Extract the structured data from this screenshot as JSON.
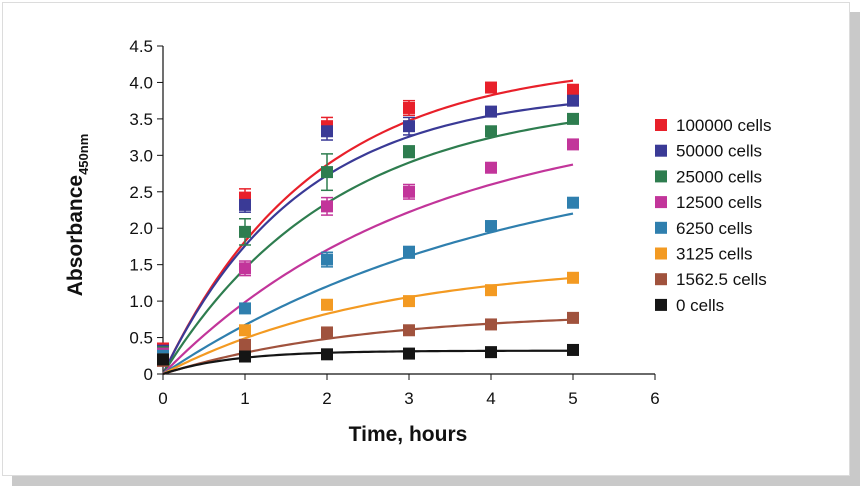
{
  "chart_data": {
    "type": "line",
    "title": "",
    "xlabel": "Time, hours",
    "ylabel_main": "Absorbance",
    "ylabel_sub": "450nm",
    "xlim": [
      0,
      6
    ],
    "ylim": [
      0,
      4.5
    ],
    "x_ticks": [
      "0",
      "1",
      "2",
      "3",
      "4",
      "5",
      "6"
    ],
    "y_ticks": [
      "0",
      "0.5",
      "1.0",
      "1.5",
      "2.0",
      "2.5",
      "3.0",
      "3.5",
      "4.0",
      "4.5"
    ],
    "x": [
      0,
      1,
      2,
      3,
      4,
      5
    ],
    "legend_position": "right",
    "grid": false,
    "series": [
      {
        "name": "100000 cells",
        "color": "#e8202a",
        "values": [
          0.35,
          2.42,
          3.4,
          3.65,
          3.93,
          3.9
        ],
        "errors": [
          0.05,
          0.12,
          0.12,
          0.1,
          0.05,
          0.05
        ],
        "fit": {
          "a": 4.3,
          "k": 0.55,
          "c": 0.0
        }
      },
      {
        "name": "50000 cells",
        "color": "#3a3a96",
        "values": [
          0.32,
          2.32,
          3.33,
          3.4,
          3.6,
          3.75
        ],
        "errors": [
          0.05,
          0.1,
          0.12,
          0.12,
          0.05,
          0.05
        ],
        "fit": {
          "a": 3.9,
          "k": 0.6,
          "c": 0.0
        }
      },
      {
        "name": "25000 cells",
        "color": "#2e7d4f",
        "values": [
          0.3,
          1.95,
          2.77,
          3.05,
          3.33,
          3.5
        ],
        "errors": [
          0.05,
          0.18,
          0.25,
          0.08,
          0.05,
          0.05
        ],
        "fit": {
          "a": 3.8,
          "k": 0.48,
          "c": 0.0
        }
      },
      {
        "name": "12500 cells",
        "color": "#c2359a",
        "values": [
          0.28,
          1.45,
          2.3,
          2.5,
          2.83,
          3.15
        ],
        "errors": [
          0.05,
          0.1,
          0.12,
          0.1,
          0.05,
          0.05
        ],
        "fit": {
          "a": 3.6,
          "k": 0.32,
          "c": 0.0
        }
      },
      {
        "name": "6250 cells",
        "color": "#2f7fae",
        "values": [
          0.25,
          0.9,
          1.57,
          1.67,
          2.03,
          2.35
        ],
        "errors": [
          0.04,
          0.05,
          0.1,
          0.08,
          0.04,
          0.04
        ],
        "fit": {
          "a": 3.15,
          "k": 0.24,
          "c": 0.0
        }
      },
      {
        "name": "3125 cells",
        "color": "#f39a22",
        "values": [
          0.2,
          0.6,
          0.95,
          1.0,
          1.15,
          1.32
        ],
        "errors": [
          0.03,
          0.03,
          0.04,
          0.04,
          0.03,
          0.03
        ],
        "fit": {
          "a": 1.55,
          "k": 0.38,
          "c": 0.0
        }
      },
      {
        "name": "1562.5 cells",
        "color": "#a0523d",
        "values": [
          0.18,
          0.4,
          0.57,
          0.6,
          0.68,
          0.77
        ],
        "errors": [
          0.03,
          0.03,
          0.03,
          0.03,
          0.03,
          0.03
        ],
        "fit": {
          "a": 0.85,
          "k": 0.42,
          "c": 0.0
        }
      },
      {
        "name": "0 cells",
        "color": "#151515",
        "values": [
          0.2,
          0.24,
          0.27,
          0.28,
          0.3,
          0.33
        ],
        "errors": [
          0.02,
          0.02,
          0.02,
          0.02,
          0.02,
          0.02
        ],
        "fit": {
          "a": 0.32,
          "k": 1.2,
          "c": 0.0
        }
      }
    ]
  }
}
